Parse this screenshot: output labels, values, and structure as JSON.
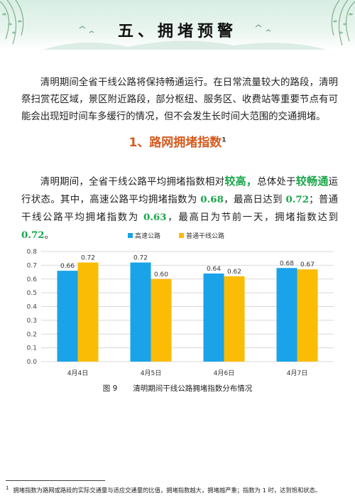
{
  "section_title": "五、拥堵预警",
  "paragraph1": "清明期间全省干线公路将保持畅通运行。在日常流量较大的路段，清明祭扫赏花区域，景区附近路段，部分枢纽、服务区、收费站等重要节点有可能会出现短时间车多缓行的情况，但不会发生长时间大范围的交通拥堵。",
  "subheading": "1、路网拥堵指数",
  "subheading_note": "1",
  "paragraph2": {
    "s1": "清明期间，全省干线公路平均拥堵指数相对",
    "hl1": "较高，",
    "s2": "总体处于",
    "hl2": "较畅通",
    "s3": "运行状态。其中，高速公路平均拥堵指数为 ",
    "v1": "0.68",
    "s4": "，最高日达到 ",
    "v2": "0.72",
    "s5": "；普通干线公路平均拥堵指数为 ",
    "v3": "0.63",
    "s6": "，最高日为节前一天，拥堵指数达到 ",
    "v4": "0.72",
    "s7": "。"
  },
  "chart_data": {
    "type": "bar",
    "categories": [
      "4月4日",
      "4月5日",
      "4月6日",
      "4月7日"
    ],
    "series": [
      {
        "name": "高速公路",
        "values": [
          0.66,
          0.72,
          0.64,
          0.68
        ],
        "labels": [
          "0.66",
          "0.72",
          "0.64",
          "0.68"
        ],
        "color": "#1aa3e8"
      },
      {
        "name": "普通干线公路",
        "values": [
          0.72,
          0.6,
          0.62,
          0.67
        ],
        "labels": [
          "0.72",
          "0.60",
          "0.62",
          "0.67"
        ],
        "color": "#fbbc05"
      }
    ],
    "ylim": [
      0,
      0.8
    ],
    "yticks": [
      "0.0",
      "0.1",
      "0.2",
      "0.3",
      "0.4",
      "0.5",
      "0.6",
      "0.7",
      "0.8"
    ],
    "grid": true,
    "legend": "top-center"
  },
  "caption": {
    "figure": "图 9",
    "text": "清明期间干线公路拥堵指数分布情况"
  },
  "footnote": {
    "mark": "1",
    "text": "拥堵指数为路网或路段的实际交通量与适应交通量的比值，拥堵指数越大，拥堵越严重；指数为 1 时，达到饱和状态。"
  }
}
